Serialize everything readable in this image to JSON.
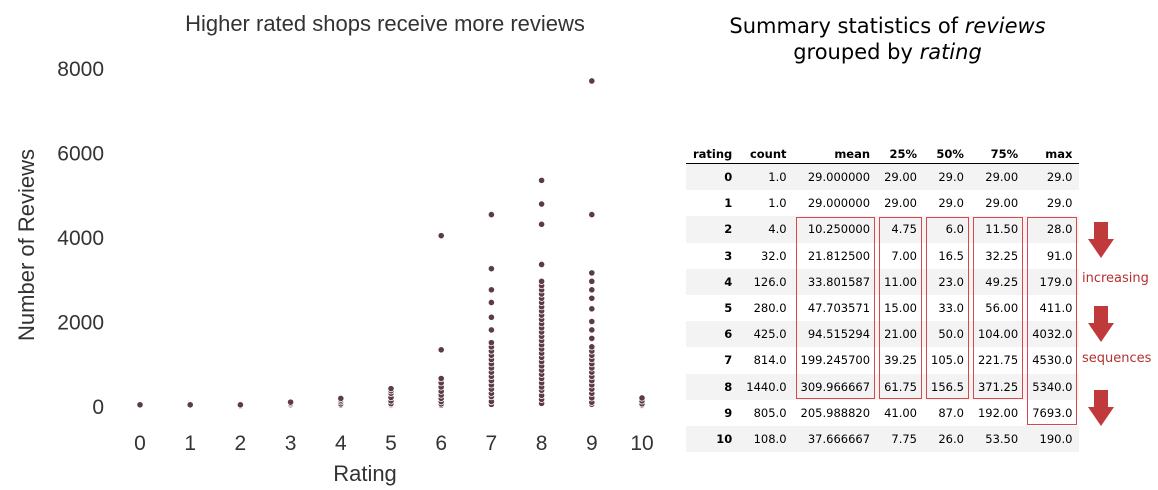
{
  "chart_data": {
    "type": "scatter",
    "title": "Higher rated shops receive more reviews",
    "xlabel": "Rating",
    "ylabel": "Number of Reviews",
    "xlim": [
      -0.35,
      10.35
    ],
    "ylim": [
      -400,
      8300
    ],
    "xticks": [
      0,
      1,
      2,
      3,
      4,
      5,
      6,
      7,
      8,
      9,
      10
    ],
    "yticks": [
      0,
      2000,
      4000,
      6000,
      8000
    ],
    "grid": false,
    "marker_color": "#5c3a47",
    "points": [
      [
        0,
        29
      ],
      [
        1,
        29
      ],
      [
        2,
        5
      ],
      [
        2,
        6
      ],
      [
        2,
        28
      ],
      [
        3,
        7
      ],
      [
        3,
        16
      ],
      [
        3,
        32
      ],
      [
        3,
        60
      ],
      [
        3,
        91
      ],
      [
        4,
        11
      ],
      [
        4,
        23
      ],
      [
        4,
        49
      ],
      [
        4,
        100
      ],
      [
        4,
        140
      ],
      [
        4,
        179
      ],
      [
        5,
        15
      ],
      [
        5,
        33
      ],
      [
        5,
        56
      ],
      [
        5,
        120
      ],
      [
        5,
        200
      ],
      [
        5,
        300
      ],
      [
        5,
        360
      ],
      [
        5,
        411
      ],
      [
        6,
        21
      ],
      [
        6,
        50
      ],
      [
        6,
        104
      ],
      [
        6,
        180
      ],
      [
        6,
        260
      ],
      [
        6,
        350
      ],
      [
        6,
        450
      ],
      [
        6,
        550
      ],
      [
        6,
        650
      ],
      [
        6,
        1330
      ],
      [
        6,
        4032
      ],
      [
        7,
        39
      ],
      [
        7,
        105
      ],
      [
        7,
        222
      ],
      [
        7,
        300
      ],
      [
        7,
        400
      ],
      [
        7,
        500
      ],
      [
        7,
        600
      ],
      [
        7,
        700
      ],
      [
        7,
        800
      ],
      [
        7,
        900
      ],
      [
        7,
        1000
      ],
      [
        7,
        1100
      ],
      [
        7,
        1200
      ],
      [
        7,
        1300
      ],
      [
        7,
        1400
      ],
      [
        7,
        1500
      ],
      [
        7,
        1800
      ],
      [
        7,
        2100
      ],
      [
        7,
        2450
      ],
      [
        7,
        2750
      ],
      [
        7,
        3250
      ],
      [
        7,
        4530
      ],
      [
        8,
        62
      ],
      [
        8,
        157
      ],
      [
        8,
        250
      ],
      [
        8,
        371
      ],
      [
        8,
        450
      ],
      [
        8,
        550
      ],
      [
        8,
        650
      ],
      [
        8,
        750
      ],
      [
        8,
        850
      ],
      [
        8,
        950
      ],
      [
        8,
        1050
      ],
      [
        8,
        1150
      ],
      [
        8,
        1250
      ],
      [
        8,
        1350
      ],
      [
        8,
        1450
      ],
      [
        8,
        1550
      ],
      [
        8,
        1650
      ],
      [
        8,
        1750
      ],
      [
        8,
        1850
      ],
      [
        8,
        1950
      ],
      [
        8,
        2050
      ],
      [
        8,
        2150
      ],
      [
        8,
        2250
      ],
      [
        8,
        2350
      ],
      [
        8,
        2450
      ],
      [
        8,
        2550
      ],
      [
        8,
        2650
      ],
      [
        8,
        2750
      ],
      [
        8,
        2850
      ],
      [
        8,
        2950
      ],
      [
        8,
        3350
      ],
      [
        8,
        4300
      ],
      [
        8,
        4780
      ],
      [
        8,
        5340
      ],
      [
        9,
        41
      ],
      [
        9,
        87
      ],
      [
        9,
        192
      ],
      [
        9,
        300
      ],
      [
        9,
        400
      ],
      [
        9,
        500
      ],
      [
        9,
        600
      ],
      [
        9,
        700
      ],
      [
        9,
        800
      ],
      [
        9,
        900
      ],
      [
        9,
        1000
      ],
      [
        9,
        1100
      ],
      [
        9,
        1200
      ],
      [
        9,
        1300
      ],
      [
        9,
        1400
      ],
      [
        9,
        1600
      ],
      [
        9,
        1800
      ],
      [
        9,
        2000
      ],
      [
        9,
        2300
      ],
      [
        9,
        2550
      ],
      [
        9,
        2750
      ],
      [
        9,
        2950
      ],
      [
        9,
        3150
      ],
      [
        9,
        4530
      ],
      [
        9,
        7693
      ],
      [
        10,
        8
      ],
      [
        10,
        26
      ],
      [
        10,
        54
      ],
      [
        10,
        120
      ],
      [
        10,
        190
      ]
    ]
  },
  "right_panel": {
    "title_line1": "Summary statistics of ",
    "title_italic1": "reviews",
    "title_line2": "grouped by ",
    "title_italic2": "rating",
    "table": {
      "columns": [
        "rating",
        "count",
        "mean",
        "25%",
        "50%",
        "75%",
        "max"
      ],
      "rows": [
        [
          "0",
          "1.0",
          "29.000000",
          "29.00",
          "29.0",
          "29.00",
          "29.0"
        ],
        [
          "1",
          "1.0",
          "29.000000",
          "29.00",
          "29.0",
          "29.00",
          "29.0"
        ],
        [
          "2",
          "4.0",
          "10.250000",
          "4.75",
          "6.0",
          "11.50",
          "28.0"
        ],
        [
          "3",
          "32.0",
          "21.812500",
          "7.00",
          "16.5",
          "32.25",
          "91.0"
        ],
        [
          "4",
          "126.0",
          "33.801587",
          "11.00",
          "23.0",
          "49.25",
          "179.0"
        ],
        [
          "5",
          "280.0",
          "47.703571",
          "15.00",
          "33.0",
          "56.00",
          "411.0"
        ],
        [
          "6",
          "425.0",
          "94.515294",
          "21.00",
          "50.0",
          "104.00",
          "4032.0"
        ],
        [
          "7",
          "814.0",
          "199.245700",
          "39.25",
          "105.0",
          "221.75",
          "4530.0"
        ],
        [
          "8",
          "1440.0",
          "309.966667",
          "61.75",
          "156.5",
          "371.25",
          "5340.0"
        ],
        [
          "9",
          "805.0",
          "205.988820",
          "41.00",
          "87.0",
          "192.00",
          "7693.0"
        ],
        [
          "10",
          "108.0",
          "37.666667",
          "7.75",
          "26.0",
          "53.50",
          "190.0"
        ]
      ]
    },
    "annotation_increasing": "increasing",
    "annotation_sequences": "sequences",
    "highlight_color": "#d8474a",
    "arrow_color": "#c0393b"
  }
}
